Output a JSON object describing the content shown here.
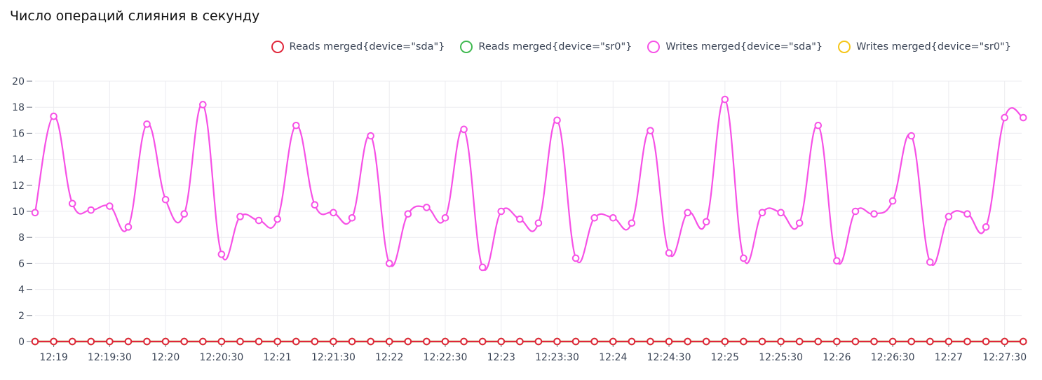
{
  "title": "Число операций слияния в секунду",
  "chart_data": {
    "type": "line",
    "title": "Число операций слияния в секунду",
    "xlabel": "",
    "ylabel": "",
    "ylim": [
      0,
      20
    ],
    "y_ticks": [
      0,
      2,
      4,
      6,
      8,
      10,
      12,
      14,
      16,
      18,
      20
    ],
    "grid": true,
    "legend_position": "top-right",
    "x": [
      "12:18:50",
      "12:19:00",
      "12:19:10",
      "12:19:20",
      "12:19:30",
      "12:19:40",
      "12:19:50",
      "12:20:00",
      "12:20:10",
      "12:20:20",
      "12:20:30",
      "12:20:40",
      "12:20:50",
      "12:21:00",
      "12:21:10",
      "12:21:20",
      "12:21:30",
      "12:21:40",
      "12:21:50",
      "12:22:00",
      "12:22:10",
      "12:22:20",
      "12:22:30",
      "12:22:40",
      "12:22:50",
      "12:23:00",
      "12:23:10",
      "12:23:20",
      "12:23:30",
      "12:23:40",
      "12:23:50",
      "12:24:00",
      "12:24:10",
      "12:24:20",
      "12:24:30",
      "12:24:40",
      "12:24:50",
      "12:25:00",
      "12:25:10",
      "12:25:20",
      "12:25:30",
      "12:25:40",
      "12:25:50",
      "12:26:00",
      "12:26:10",
      "12:26:20",
      "12:26:30",
      "12:26:40",
      "12:26:50",
      "12:27:00",
      "12:27:10",
      "12:27:20",
      "12:27:30",
      "12:27:40"
    ],
    "x_tick_labels": [
      "12:19",
      "12:19:30",
      "12:20",
      "12:20:30",
      "12:21",
      "12:21:30",
      "12:22",
      "12:22:30",
      "12:23",
      "12:23:30",
      "12:24",
      "12:24:30",
      "12:25",
      "12:25:30",
      "12:26",
      "12:26:30",
      "12:27",
      "12:27:30"
    ],
    "series": [
      {
        "name": "Reads merged{device=\"sda\"}",
        "color": "#e0263a",
        "values": [
          0,
          0,
          0,
          0,
          0,
          0,
          0,
          0,
          0,
          0,
          0,
          0,
          0,
          0,
          0,
          0,
          0,
          0,
          0,
          0,
          0,
          0,
          0,
          0,
          0,
          0,
          0,
          0,
          0,
          0,
          0,
          0,
          0,
          0,
          0,
          0,
          0,
          0,
          0,
          0,
          0,
          0,
          0,
          0,
          0,
          0,
          0,
          0,
          0,
          0,
          0,
          0,
          0,
          0
        ]
      },
      {
        "name": "Reads merged{device=\"sr0\"}",
        "color": "#3fb950",
        "values": [
          0,
          0,
          0,
          0,
          0,
          0,
          0,
          0,
          0,
          0,
          0,
          0,
          0,
          0,
          0,
          0,
          0,
          0,
          0,
          0,
          0,
          0,
          0,
          0,
          0,
          0,
          0,
          0,
          0,
          0,
          0,
          0,
          0,
          0,
          0,
          0,
          0,
          0,
          0,
          0,
          0,
          0,
          0,
          0,
          0,
          0,
          0,
          0,
          0,
          0,
          0,
          0,
          0,
          0
        ]
      },
      {
        "name": "Writes merged{device=\"sda\"}",
        "color": "#f651e6",
        "values": [
          9.9,
          17.3,
          10.6,
          10.1,
          10.4,
          8.8,
          16.7,
          10.9,
          9.8,
          18.2,
          6.7,
          9.6,
          9.3,
          9.4,
          16.6,
          10.5,
          9.9,
          9.5,
          15.8,
          6.0,
          9.8,
          10.3,
          9.5,
          16.3,
          5.7,
          10.0,
          9.4,
          9.1,
          17.0,
          6.4,
          9.5,
          9.5,
          9.1,
          16.2,
          6.8,
          9.9,
          9.2,
          18.6,
          6.4,
          9.9,
          9.9,
          9.1,
          16.6,
          6.2,
          10.0,
          9.8,
          10.8,
          15.8,
          6.1,
          9.6,
          9.8,
          8.8,
          17.2,
          17.2
        ]
      },
      {
        "name": "Writes merged{device=\"sr0\"}",
        "color": "#f5c518",
        "values": [
          0,
          0,
          0,
          0,
          0,
          0,
          0,
          0,
          0,
          0,
          0,
          0,
          0,
          0,
          0,
          0,
          0,
          0,
          0,
          0,
          0,
          0,
          0,
          0,
          0,
          0,
          0,
          0,
          0,
          0,
          0,
          0,
          0,
          0,
          0,
          0,
          0,
          0,
          0,
          0,
          0,
          0,
          0,
          0,
          0,
          0,
          0,
          0,
          0,
          0,
          0,
          0,
          0,
          0
        ]
      }
    ]
  }
}
